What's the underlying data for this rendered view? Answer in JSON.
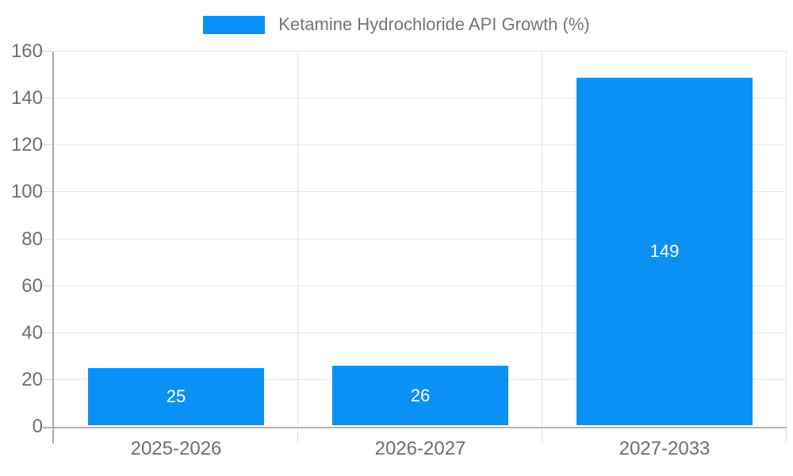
{
  "legend": {
    "label": "Ketamine Hydrochloride API Growth (%)"
  },
  "colors": {
    "bar": "#0A91F5",
    "axis": "#ABABAB",
    "gridline": "#E6E6E6",
    "axis_label_text": "#6E6E6E",
    "legend_text": "#757575",
    "value_label_text": "#FFFFFF",
    "background": "#FFFFFF"
  },
  "chart_data": {
    "type": "bar",
    "title": "Ketamine Hydrochloride API Growth (%)",
    "categories": [
      "2025-2026",
      "2026-2027",
      "2027-2033"
    ],
    "values": [
      25,
      26,
      149
    ],
    "value_labels": [
      "25",
      "26",
      "149"
    ],
    "xlabel": "",
    "ylabel": "",
    "ylim": [
      0,
      160
    ],
    "yticks": [
      0,
      20,
      40,
      60,
      80,
      100,
      120,
      140,
      160
    ],
    "grid": true,
    "legend_position": "top-center",
    "value_labels_position": "centered-inside-bar"
  }
}
